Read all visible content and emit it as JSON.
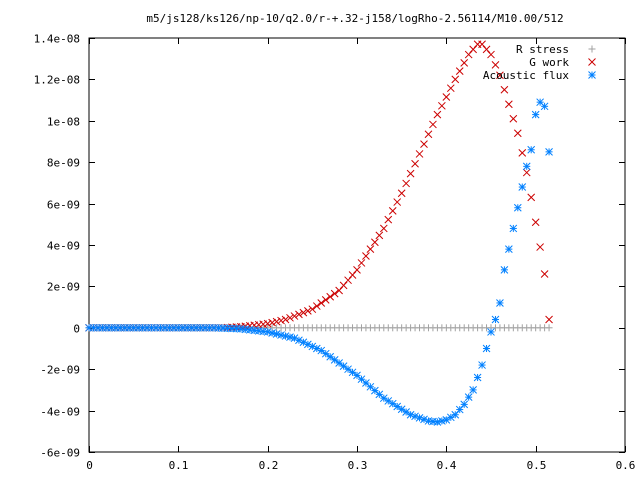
{
  "chart_data": {
    "type": "scatter",
    "title": "m5/js128/ks126/np-10/q2.0/r-+.32-j158/logRho-2.56114/M10.00/512",
    "xlabel": "",
    "ylabel": "",
    "xlim": [
      0,
      0.6
    ],
    "ylim": [
      -6e-09,
      1.4e-08
    ],
    "x_ticks": [
      0,
      0.1,
      0.2,
      0.3,
      0.4,
      0.5,
      0.6
    ],
    "x_tick_labels": [
      "0",
      "0.1",
      "0.2",
      "0.3",
      "0.4",
      "0.5",
      "0.6"
    ],
    "y_ticks": [
      -6e-09,
      -4e-09,
      -2e-09,
      0,
      2e-09,
      4e-09,
      6e-09,
      8e-09,
      1e-08,
      1.2e-08,
      1.4e-08
    ],
    "y_tick_labels": [
      "-6e-09",
      "-4e-09",
      "-2e-09",
      "0",
      "2e-09",
      "4e-09",
      "6e-09",
      "8e-09",
      "1e-08",
      "1.2e-08",
      "1.4e-08"
    ],
    "grid": false,
    "legend": "top-right",
    "series": [
      {
        "name": "R stress",
        "marker": "plus",
        "color": "#a0a0a0",
        "sampled": {
          "x_start": 0.0,
          "x_end": 0.515,
          "count": 104,
          "knots_x": [
            0,
            0.515
          ],
          "knots_y": [
            0,
            0
          ]
        }
      },
      {
        "name": "G work",
        "marker": "cross",
        "color": "#cc0000",
        "sampled": {
          "x_start": 0.0,
          "x_end": 0.515,
          "count": 104,
          "knots_x": [
            0,
            0.15,
            0.17,
            0.2,
            0.22,
            0.25,
            0.28,
            0.3,
            0.33,
            0.35,
            0.37,
            0.39,
            0.41,
            0.425,
            0.435,
            0.44,
            0.45,
            0.46,
            0.47,
            0.48,
            0.49,
            0.5,
            0.505,
            0.51,
            0.515
          ],
          "knots_y": [
            0,
            0,
            5e-11,
            2e-10,
            4e-10,
            9e-10,
            1.8e-09,
            2.8e-09,
            4.8e-09,
            6.5e-09,
            8.4e-09,
            1.03e-08,
            1.2e-08,
            1.32e-08,
            1.37e-08,
            1.37e-08,
            1.32e-08,
            1.22e-08,
            1.08e-08,
            9.4e-09,
            7.5e-09,
            5.1e-09,
            3.9e-09,
            2.6e-09,
            4e-10
          ]
        }
      },
      {
        "name": "Acoustic flux",
        "marker": "star",
        "color": "#0080ff",
        "sampled": {
          "x_start": 0.0,
          "x_end": 0.51,
          "count": 103,
          "knots_x": [
            0,
            0.14,
            0.17,
            0.2,
            0.23,
            0.26,
            0.3,
            0.33,
            0.36,
            0.38,
            0.39,
            0.4,
            0.41,
            0.42,
            0.43,
            0.44,
            0.445,
            0.45,
            0.455,
            0.46,
            0.465,
            0.47,
            0.475,
            0.48,
            0.485,
            0.49,
            0.495,
            0.5,
            0.505,
            0.51
          ],
          "knots_y": [
            0,
            0,
            -5e-11,
            -2e-10,
            -5e-10,
            -1.1e-09,
            -2.3e-09,
            -3.4e-09,
            -4.2e-09,
            -4.5e-09,
            -4.55e-09,
            -4.45e-09,
            -4.2e-09,
            -3.7e-09,
            -3e-09,
            -1.8e-09,
            -1e-09,
            -2e-10,
            4e-10,
            1.2e-09,
            2.8e-09,
            3.8e-09,
            4.8e-09,
            5.8e-09,
            6.8e-09,
            7.8e-09,
            8.6e-09,
            1.03e-08,
            1.09e-08,
            1.07e-08
          ]
        },
        "extra_points": [
          {
            "x": 0.515,
            "y": 8.5e-09
          }
        ]
      }
    ]
  }
}
